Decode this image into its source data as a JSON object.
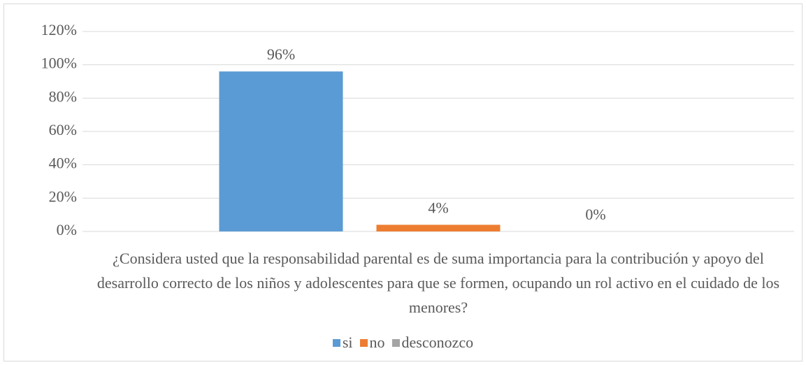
{
  "chart_data": {
    "type": "bar",
    "categories": [
      "¿Considera usted que la responsabilidad parental es de suma importancia para la contribución y apoyo del desarrollo correcto de los niños y adolescentes para que se formen, ocupando un rol activo en el cuidado de los menores?"
    ],
    "series": [
      {
        "name": "si",
        "color": "#5b9bd5",
        "values": [
          96
        ],
        "value_labels": [
          "96%"
        ]
      },
      {
        "name": "no",
        "color": "#ed7d31",
        "values": [
          4
        ],
        "value_labels": [
          "4%"
        ]
      },
      {
        "name": "desconozco",
        "color": "#a5a5a5",
        "values": [
          0
        ],
        "value_labels": [
          "0%"
        ]
      }
    ],
    "ylim": [
      0,
      120
    ],
    "yticks": [
      {
        "value": 0,
        "label": "0%"
      },
      {
        "value": 20,
        "label": "20%"
      },
      {
        "value": 40,
        "label": "40%"
      },
      {
        "value": 60,
        "label": "60%"
      },
      {
        "value": 80,
        "label": "80%"
      },
      {
        "value": 100,
        "label": "100%"
      },
      {
        "value": 120,
        "label": "120%"
      }
    ],
    "grid": true,
    "legend": "bottom"
  }
}
